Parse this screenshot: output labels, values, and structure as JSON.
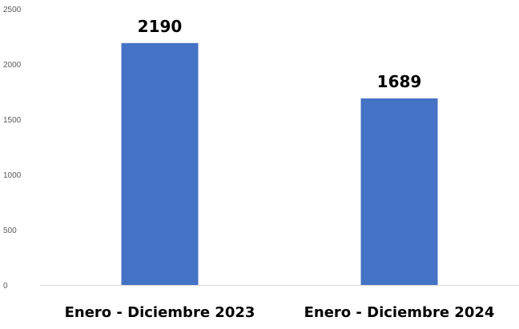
{
  "chart_data": {
    "type": "bar",
    "categories": [
      "Enero - Diciembre 2023",
      "Enero - Diciembre 2024"
    ],
    "values": [
      2190,
      1689
    ],
    "data_labels": [
      "2190",
      "1689"
    ],
    "yticks": [
      "0",
      "500",
      "1000",
      "1500",
      "2000",
      "2500"
    ],
    "ylim": [
      0,
      2500
    ],
    "title": "",
    "xlabel": "",
    "ylabel": "",
    "grid": false,
    "bar_color": "#4472c4",
    "axis_color": "#d9d9d9"
  }
}
